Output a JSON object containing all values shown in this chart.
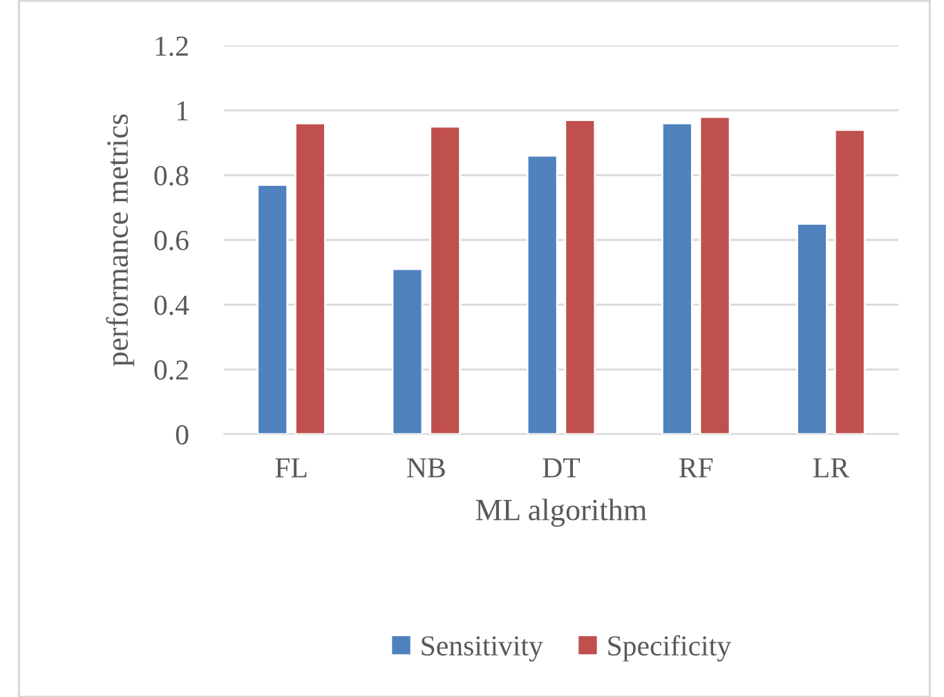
{
  "chart_data": {
    "type": "bar",
    "xlabel": "ML algorithm",
    "ylabel": "performance metrics",
    "categories": [
      "FL",
      "NB",
      "DT",
      "RF",
      "LR"
    ],
    "series": [
      {
        "name": "Sensitivity",
        "color": "#4f81bd",
        "values": [
          0.77,
          0.51,
          0.86,
          0.96,
          0.65
        ]
      },
      {
        "name": "Specificity",
        "color": "#c0504d",
        "values": [
          0.96,
          0.95,
          0.97,
          0.98,
          0.94
        ]
      }
    ],
    "ylim": [
      0,
      1.2
    ],
    "yticks": [
      0,
      0.2,
      0.4,
      0.6,
      0.8,
      1,
      1.2
    ],
    "grid": "y",
    "legend": "bottom"
  }
}
